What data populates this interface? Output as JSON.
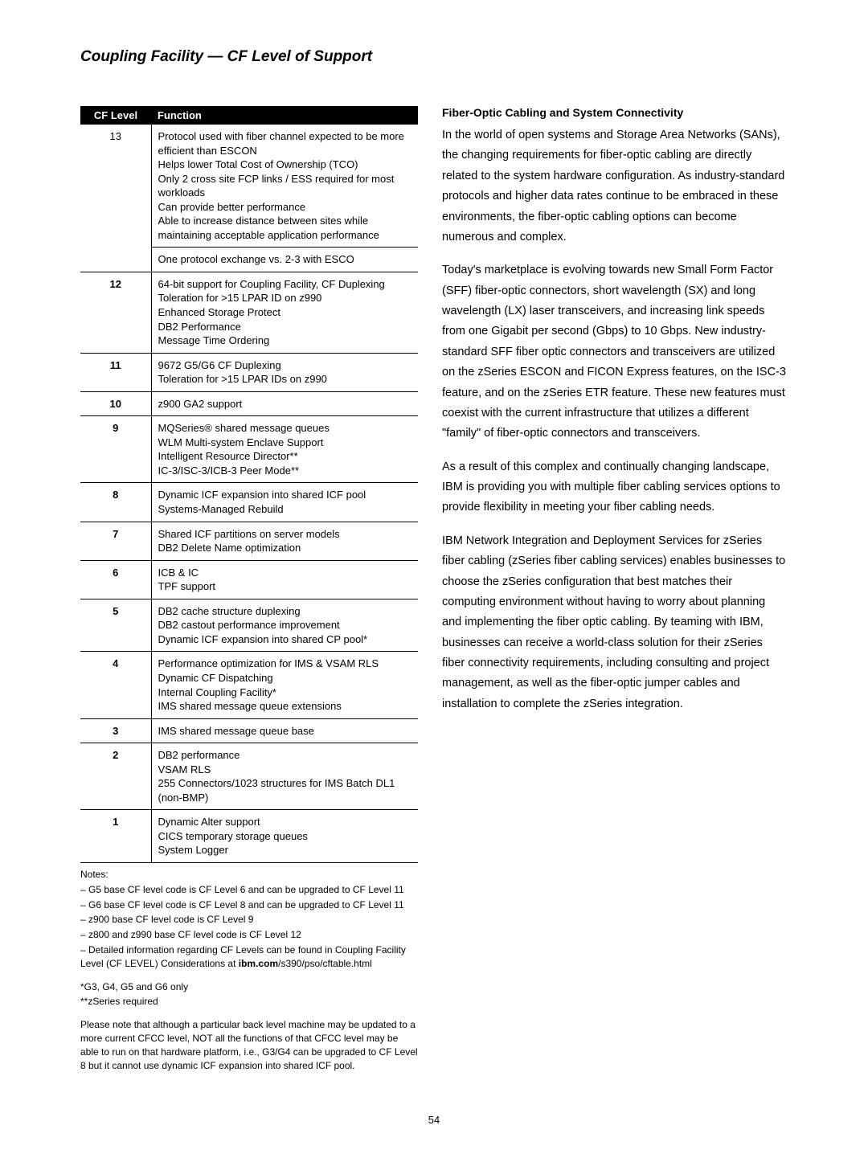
{
  "title": "Coupling Facility — CF Level of Support",
  "table": {
    "headers": {
      "level": "CF Level",
      "function": "Function"
    },
    "rows": [
      {
        "level": "13",
        "level_bold": false,
        "lines": [
          "Protocol used with fiber channel expected to be more efficient than ESCON",
          "Helps lower Total Cost of Ownership (TCO)",
          "Only 2 cross site FCP links / ESS required for most workloads",
          "Can provide better performance",
          "Able to increase distance between sites while maintaining acceptable application performance"
        ],
        "extra": "One protocol exchange vs. 2-3 with ESCO"
      },
      {
        "level": "12",
        "level_bold": true,
        "lines": [
          "64-bit support for Coupling Facility, CF Duplexing",
          "Toleration for >15 LPAR ID on z990",
          "Enhanced Storage Protect",
          "DB2 Performance",
          "Message Time Ordering"
        ]
      },
      {
        "level": "11",
        "level_bold": true,
        "lines": [
          "9672 G5/G6 CF Duplexing",
          "Toleration for >15 LPAR IDs on z990"
        ]
      },
      {
        "level": "10",
        "level_bold": true,
        "lines": [
          "z900 GA2 support"
        ]
      },
      {
        "level": "9",
        "level_bold": true,
        "lines": [
          "MQSeries® shared message queues",
          "WLM Multi-system Enclave Support",
          "Intelligent Resource Director**",
          "IC-3/ISC-3/ICB-3 Peer Mode**"
        ]
      },
      {
        "level": "8",
        "level_bold": true,
        "lines": [
          "Dynamic ICF expansion into shared ICF pool",
          "Systems-Managed Rebuild"
        ]
      },
      {
        "level": "7",
        "level_bold": true,
        "lines": [
          "Shared ICF partitions on server models",
          "DB2 Delete Name optimization"
        ]
      },
      {
        "level": "6",
        "level_bold": true,
        "lines": [
          "ICB & IC",
          "TPF support"
        ]
      },
      {
        "level": "5",
        "level_bold": true,
        "lines": [
          "DB2 cache structure duplexing",
          "DB2 castout performance improvement",
          "Dynamic ICF expansion into shared CP pool*"
        ]
      },
      {
        "level": "4",
        "level_bold": true,
        "lines": [
          "Performance optimization for IMS & VSAM RLS",
          "Dynamic CF Dispatching",
          "Internal Coupling Facility*",
          "IMS shared message queue extensions"
        ]
      },
      {
        "level": "3",
        "level_bold": true,
        "lines": [
          "IMS shared message queue base"
        ]
      },
      {
        "level": "2",
        "level_bold": true,
        "lines": [
          "DB2 performance",
          "VSAM RLS",
          "255 Connectors/1023 structures for IMS Batch DL1 (non-BMP)"
        ]
      },
      {
        "level": "1",
        "level_bold": true,
        "lines": [
          "Dynamic Alter support",
          "CICS temporary storage queues",
          "System Logger"
        ]
      }
    ]
  },
  "notes": {
    "label": "Notes:",
    "items": [
      "– G5 base CF level code is CF Level 6 and can be upgraded to CF Level 11",
      "– G6 base CF level code is CF Level 8 and can be upgraded to CF Level 11",
      "– z900 base CF level code is CF Level 9",
      "– z800 and z990 base CF level code is CF Level 12"
    ],
    "detail_prefix": "– Detailed information regarding CF Levels can be found in Coupling Facility Level (CF LEVEL) Considerations at ",
    "detail_bold": "ibm.com",
    "detail_suffix": "/s390/pso/cftable.html",
    "stars": [
      "*G3, G4, G5 and G6 only",
      "**zSeries required"
    ],
    "final": "Please note that although a particular back level machine may be updated to a more current CFCC level, NOT all the functions of that CFCC level may be able to run on that hardware platform, i.e., G3/G4 can be upgraded to CF Level 8 but it cannot use dynamic ICF expansion into shared ICF pool."
  },
  "right": {
    "heading": "Fiber-Optic Cabling and System Connectivity",
    "p1": "In the world of open systems and Storage Area Networks (SANs), the changing requirements for fiber-optic cabling are directly related to the system hardware configuration. As industry-standard protocols and higher data rates continue to be embraced in these environments, the fiber-optic cabling options can become numerous and complex.",
    "p2": "Today's marketplace is evolving towards new Small Form Factor (SFF) fiber-optic connectors, short wavelength (SX) and long wavelength (LX) laser transceivers, and increasing link speeds from one Gigabit per second (Gbps) to 10 Gbps. New industry-standard SFF fiber optic connectors and transceivers are utilized on the zSeries ESCON and FICON Express features, on the ISC-3 feature, and on the zSeries ETR feature. These new features must coexist with the current infrastructure that utilizes a different \"family\" of fiber-optic connectors and transceivers.",
    "p3": "As a result of this complex and continually changing landscape, IBM is providing you with multiple fiber cabling services options to provide flexibility in meeting your fiber cabling needs.",
    "p4": "IBM Network Integration and Deployment Services for zSeries fiber cabling (zSeries fiber cabling services) enables businesses to choose the zSeries configuration that best matches their computing environment without having to worry about planning and implementing the fiber optic cabling. By teaming with IBM, businesses can receive a world-class solution for their zSeries fiber connectivity requirements, including consulting and project management, as well as the fiber-optic jumper cables and installation to complete the zSeries integration."
  },
  "page_number": "54"
}
